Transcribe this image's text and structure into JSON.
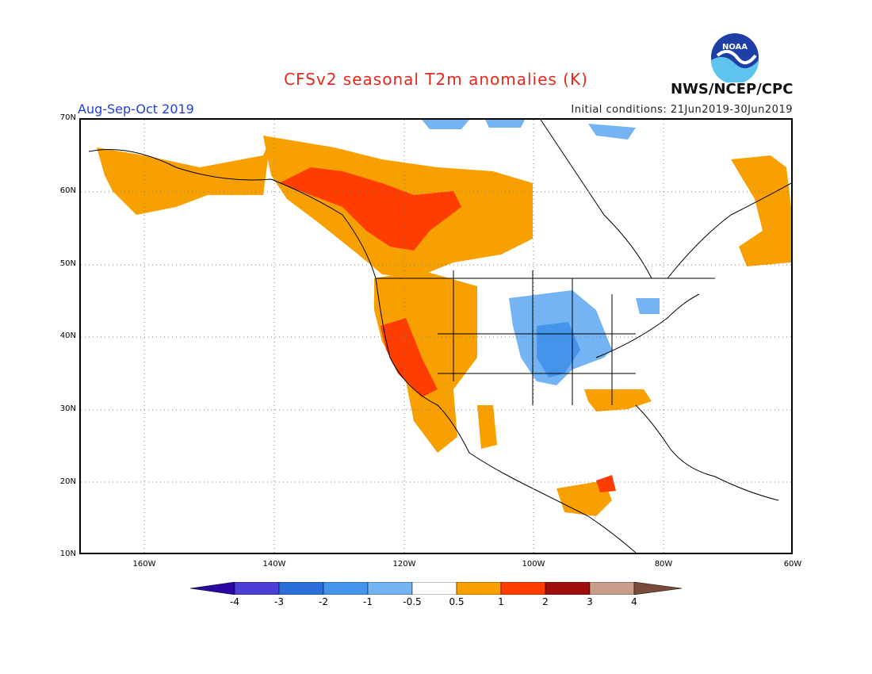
{
  "header": {
    "title": "CFSv2 seasonal T2m anomalies (K)",
    "season": "Aug-Sep-Oct 2019",
    "initial_conditions": "Initial conditions: 21Jun2019-30Jun2019",
    "agency": "NWS/NCEP/CPC",
    "logo_text": "NOAA"
  },
  "colors": {
    "title": "#e8271c",
    "season": "#1f3fe0",
    "anom_0_5_to_1": "#f7a000",
    "anom_1_to_2": "#ff3d00",
    "anom_neg_0_5_to_neg_1": "#74b4f4",
    "anom_neg_1_to_neg_2": "#4594ec"
  },
  "map": {
    "lat_labels": [
      "70N",
      "60N",
      "50N",
      "40N",
      "30N",
      "20N",
      "10N"
    ],
    "lon_labels": [
      "160W",
      "140W",
      "120W",
      "100W",
      "80W",
      "60W"
    ],
    "lat_range": [
      10,
      70
    ],
    "lon_range": [
      -170,
      -60
    ],
    "gridlines": "dotted",
    "anomaly_regions": [
      {
        "name": "alaska",
        "level": "0.5 to 1"
      },
      {
        "name": "western-canada",
        "level": "0.5 to 1"
      },
      {
        "name": "pacific-northwest",
        "level": "1 to 2"
      },
      {
        "name": "california-nevada",
        "level": "1 to 2"
      },
      {
        "name": "central-plains",
        "level": "-0.5 to -1"
      },
      {
        "name": "kansas-missouri",
        "level": "-1 to -2"
      },
      {
        "name": "gulf-coast",
        "level": "0.5 to 1"
      },
      {
        "name": "northeast-canada",
        "level": "0.5 to 1"
      },
      {
        "name": "central-america",
        "level": "0.5 to 1"
      }
    ]
  },
  "colorbar": {
    "labels": [
      "-4",
      "-3",
      "-2",
      "-1",
      "-0.5",
      "0.5",
      "1",
      "2",
      "3",
      "4"
    ],
    "colors": [
      "#2b07a3",
      "#4c3fd8",
      "#2a6fdb",
      "#4594ec",
      "#74b4f4",
      "#ffffff",
      "#f7a000",
      "#ff3d00",
      "#a00d0d",
      "#c89e8a",
      "#7a4b3a"
    ]
  }
}
